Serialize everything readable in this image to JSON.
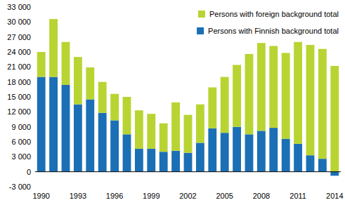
{
  "chart_data": {
    "type": "bar",
    "stacked": true,
    "grid": false,
    "legend": "top-right",
    "categories": [
      1990,
      null,
      null,
      1993,
      null,
      null,
      1996,
      null,
      null,
      1999,
      null,
      null,
      2002,
      null,
      null,
      2005,
      null,
      null,
      2008,
      null,
      null,
      2011,
      null,
      null,
      2014
    ],
    "series": [
      {
        "name": "Persons with Finnish background total",
        "color": "#1b6fb5",
        "values": [
          19000,
          19000,
          17400,
          13500,
          14500,
          11800,
          10300,
          7500,
          4600,
          4600,
          4000,
          4200,
          3800,
          5800,
          8700,
          7800,
          9000,
          7500,
          8200,
          8800,
          6600,
          5600,
          3300,
          2600,
          -800
        ]
      },
      {
        "name": "Persons with foreign background total",
        "color": "#b8d433",
        "values": [
          5000,
          11600,
          8600,
          9500,
          6400,
          6200,
          5300,
          7500,
          7700,
          7000,
          5700,
          9700,
          7600,
          7700,
          8200,
          11200,
          12400,
          16100,
          17600,
          16400,
          17200,
          20400,
          22100,
          22000,
          21200
        ]
      }
    ],
    "ylim": [
      -3000,
      33000
    ],
    "yticks": [
      {
        "value": -3000,
        "label": "-3 000"
      },
      0,
      {
        "value": 3000,
        "label": "3 000"
      },
      {
        "value": 6000,
        "label": "6 000"
      },
      {
        "value": 9000,
        "label": "9 000"
      },
      {
        "value": 12000,
        "label": "12 000"
      },
      {
        "value": 15000,
        "label": "15 000"
      },
      {
        "value": 18000,
        "label": "18 000"
      },
      {
        "value": 21000,
        "label": "21 000"
      },
      {
        "value": 24000,
        "label": "24 000"
      },
      {
        "value": 27000,
        "label": "27 000"
      },
      {
        "value": 30000,
        "label": "30 000"
      },
      {
        "value": 33000,
        "label": "33 000"
      }
    ]
  }
}
